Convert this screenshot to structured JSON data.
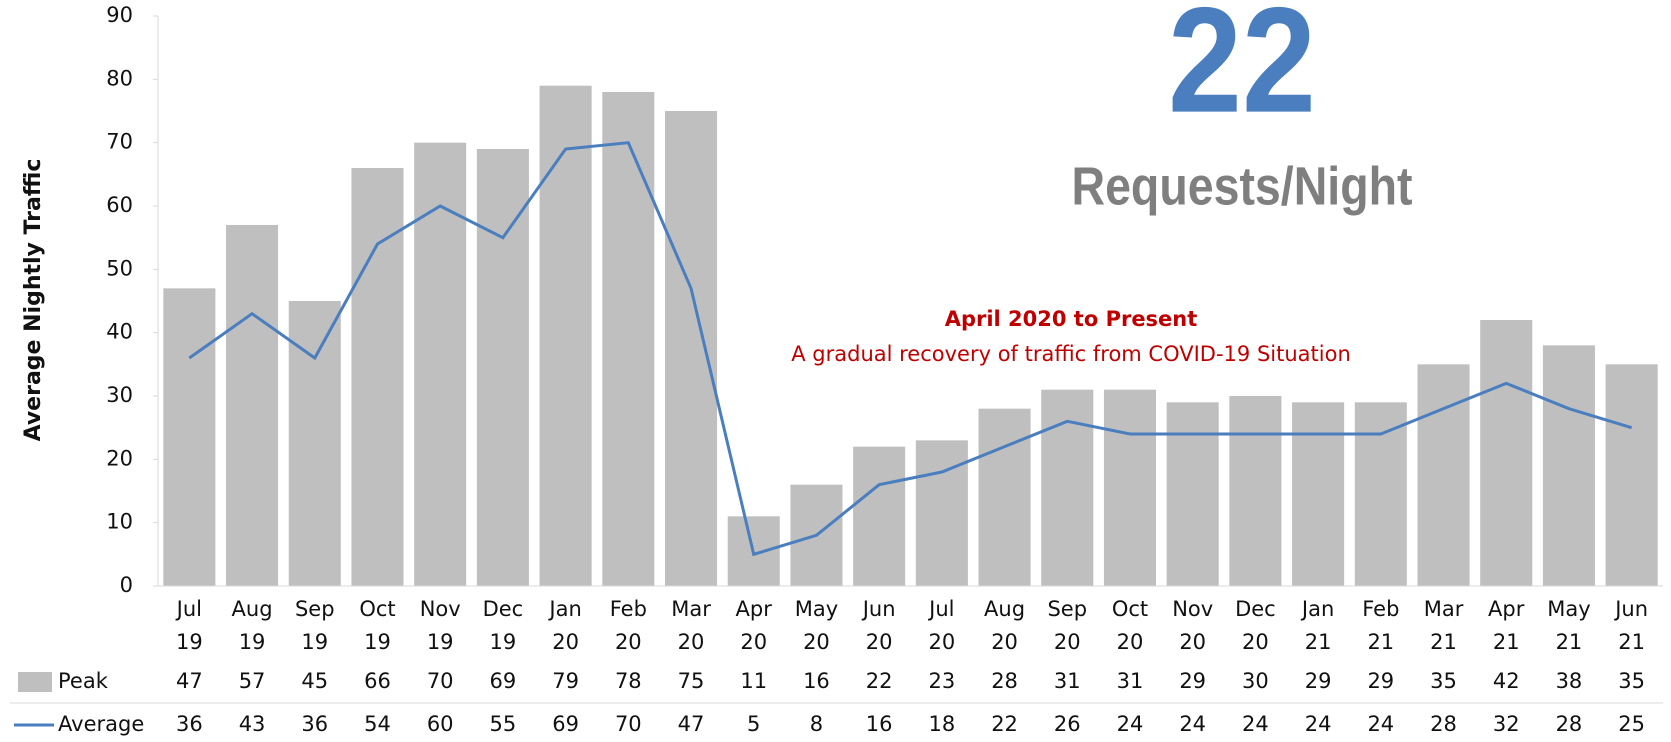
{
  "chart_data": {
    "type": "bar-line",
    "ylabel": "Average Nightly Traffic",
    "categories": [
      [
        "Jul",
        "19"
      ],
      [
        "Aug",
        "19"
      ],
      [
        "Sep",
        "19"
      ],
      [
        "Oct",
        "19"
      ],
      [
        "Nov",
        "19"
      ],
      [
        "Dec",
        "19"
      ],
      [
        "Jan",
        "20"
      ],
      [
        "Feb",
        "20"
      ],
      [
        "Mar",
        "20"
      ],
      [
        "Apr",
        "20"
      ],
      [
        "May",
        "20"
      ],
      [
        "Jun",
        "20"
      ],
      [
        "Jul",
        "20"
      ],
      [
        "Aug",
        "20"
      ],
      [
        "Sep",
        "20"
      ],
      [
        "Oct",
        "20"
      ],
      [
        "Nov",
        "20"
      ],
      [
        "Dec",
        "20"
      ],
      [
        "Jan",
        "21"
      ],
      [
        "Feb",
        "21"
      ],
      [
        "Mar",
        "21"
      ],
      [
        "Apr",
        "21"
      ],
      [
        "May",
        "21"
      ],
      [
        "Jun",
        "21"
      ]
    ],
    "series": [
      {
        "name": "Peak",
        "type": "bar",
        "color": "#bfbfbf",
        "values": [
          47,
          57,
          45,
          66,
          70,
          69,
          79,
          78,
          75,
          11,
          16,
          22,
          23,
          28,
          31,
          31,
          29,
          30,
          29,
          29,
          35,
          42,
          38,
          35
        ]
      },
      {
        "name": "Average",
        "type": "line",
        "color": "#4a7ebf",
        "values": [
          36,
          43,
          36,
          54,
          60,
          55,
          69,
          70,
          47,
          5,
          8,
          16,
          18,
          22,
          26,
          24,
          24,
          24,
          24,
          24,
          28,
          32,
          28,
          25
        ]
      }
    ],
    "ylim": [
      0,
      90
    ],
    "yticks": [
      0,
      10,
      20,
      30,
      40,
      50,
      60,
      70,
      80,
      90
    ],
    "headline": {
      "number": "22",
      "unit": "Requests/Night"
    },
    "annotation": {
      "title": "April 2020 to Present",
      "text": "A gradual recovery of traffic from COVID-19 Situation"
    }
  }
}
